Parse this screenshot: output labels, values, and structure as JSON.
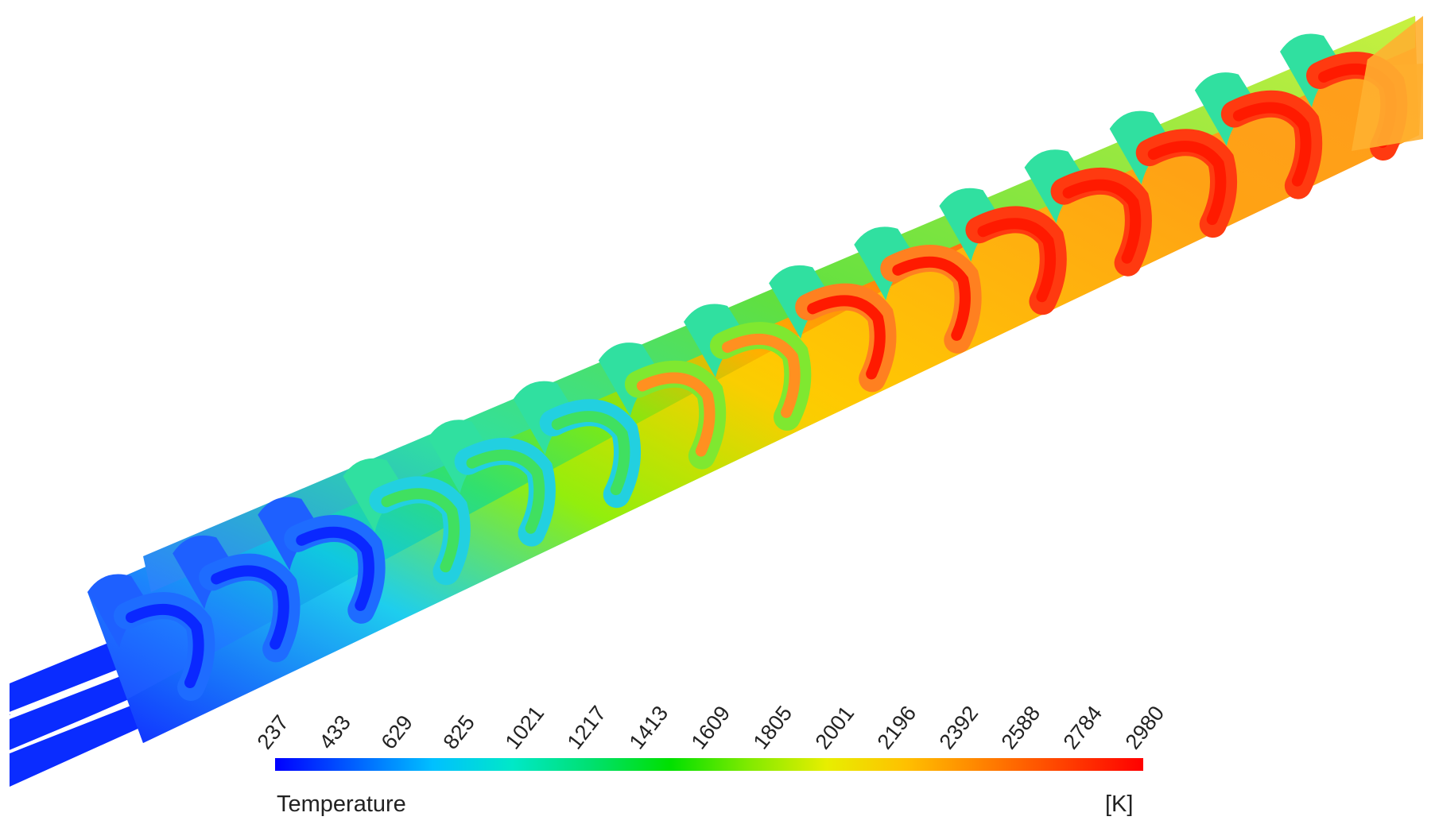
{
  "legend": {
    "title": "Temperature",
    "unit": "[K]",
    "min": 237,
    "max": 2980,
    "ticks": [
      "237",
      "433",
      "629",
      "825",
      "1021",
      "1217",
      "1413",
      "1609",
      "1805",
      "2001",
      "2196",
      "2392",
      "2588",
      "2784",
      "2980"
    ],
    "colormap": [
      "#0000ff",
      "#0060ff",
      "#00c0ff",
      "#00e8c8",
      "#00e070",
      "#00e000",
      "#80ea00",
      "#e8ee00",
      "#ffc000",
      "#ff8000",
      "#ff4000",
      "#ff0000"
    ]
  }
}
